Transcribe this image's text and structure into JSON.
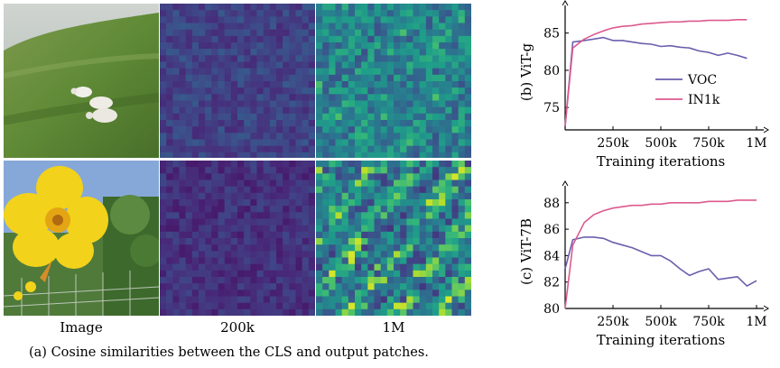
{
  "left": {
    "column_labels": [
      "Image",
      "200k",
      "1M"
    ],
    "caption": "(a)  Cosine similarities between the CLS and output patches.",
    "rows": [
      {
        "name": "sheep",
        "images": [
          "hillside-with-sheep-photo",
          "cosine-map-200k",
          "cosine-map-1M"
        ]
      },
      {
        "name": "flower",
        "images": [
          "yellow-flower-photo",
          "cosine-map-200k",
          "cosine-map-1M"
        ]
      }
    ]
  },
  "colors": {
    "voc": "#6a5fad",
    "in1k": "#dd5a8f",
    "heat_low": "#3c0f56",
    "heat_high": "#d8e62b"
  },
  "chart_data": [
    {
      "type": "line",
      "title": "",
      "ylabel": "(b) ViT-g",
      "xlabel": "Training iterations",
      "xticks": [
        "250k",
        "500k",
        "750k",
        "1M"
      ],
      "yticks": [
        "75",
        "80",
        "85"
      ],
      "xlim": [
        0,
        1000000
      ],
      "ylim": [
        72,
        87.5
      ],
      "legend": {
        "position": "lower-right",
        "entries": [
          "VOC",
          "IN1k"
        ]
      },
      "series": [
        {
          "name": "VOC",
          "color": "#6a5fad",
          "x": [
            0,
            40000,
            100000,
            150000,
            200000,
            250000,
            300000,
            350000,
            400000,
            450000,
            500000,
            550000,
            600000,
            650000,
            700000,
            750000,
            800000,
            850000,
            900000,
            950000
          ],
          "y": [
            72.5,
            83.8,
            84.0,
            84.2,
            84.4,
            84.0,
            84.0,
            83.8,
            83.6,
            83.5,
            83.2,
            83.3,
            83.1,
            83.0,
            82.6,
            82.4,
            82.0,
            82.3,
            82.0,
            81.6
          ]
        },
        {
          "name": "IN1k",
          "color": "#dd5a8f",
          "x": [
            0,
            40000,
            100000,
            150000,
            200000,
            250000,
            300000,
            350000,
            400000,
            450000,
            500000,
            550000,
            600000,
            650000,
            700000,
            750000,
            800000,
            850000,
            900000,
            950000
          ],
          "y": [
            72.5,
            83.0,
            84.2,
            84.8,
            85.3,
            85.7,
            85.9,
            86.0,
            86.2,
            86.3,
            86.4,
            86.5,
            86.5,
            86.6,
            86.6,
            86.7,
            86.7,
            86.7,
            86.8,
            86.8
          ]
        }
      ]
    },
    {
      "type": "line",
      "title": "",
      "ylabel": "(c) ViT-7B",
      "xlabel": "Training iterations",
      "xticks": [
        "250k",
        "500k",
        "750k",
        "1M"
      ],
      "yticks": [
        "80",
        "82",
        "84",
        "86",
        "88"
      ],
      "xlim": [
        0,
        1000000
      ],
      "ylim": [
        80,
        88.6
      ],
      "legend": null,
      "series": [
        {
          "name": "VOC",
          "color": "#6a5fad",
          "x": [
            0,
            40000,
            100000,
            150000,
            200000,
            250000,
            300000,
            350000,
            400000,
            450000,
            500000,
            550000,
            600000,
            650000,
            700000,
            750000,
            800000,
            850000,
            900000,
            950000,
            1000000
          ],
          "y": [
            83.0,
            85.2,
            85.4,
            85.4,
            85.3,
            85.0,
            84.8,
            84.6,
            84.3,
            84.0,
            84.0,
            83.6,
            83.0,
            82.5,
            82.8,
            83.0,
            82.2,
            82.3,
            82.4,
            81.7,
            82.1
          ]
        },
        {
          "name": "IN1k",
          "color": "#dd5a8f",
          "x": [
            0,
            40000,
            100000,
            150000,
            200000,
            250000,
            300000,
            350000,
            400000,
            450000,
            500000,
            550000,
            600000,
            650000,
            700000,
            750000,
            800000,
            850000,
            900000,
            950000,
            1000000
          ],
          "y": [
            80.0,
            84.8,
            86.5,
            87.1,
            87.4,
            87.6,
            87.7,
            87.8,
            87.8,
            87.9,
            87.9,
            88.0,
            88.0,
            88.0,
            88.0,
            88.1,
            88.1,
            88.1,
            88.2,
            88.2,
            88.2
          ]
        }
      ]
    }
  ]
}
